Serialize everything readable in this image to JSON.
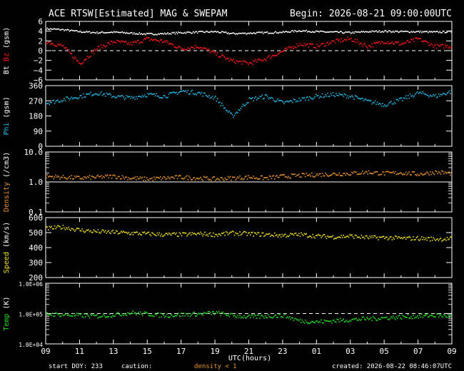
{
  "header": {
    "title": "ACE RTSW[Estimated] MAG & SWEPAM",
    "begin": "Begin: 2026-08-21 09:00:00UTC"
  },
  "footer": {
    "start_doy": "start DOY: 233",
    "caution": "caution:",
    "density_note": "density < 1",
    "created": "created: 2026-08-22 08:46:07UTC",
    "xlabel": "UTC(hours)"
  },
  "colors": {
    "bt": "#ffffff",
    "bz": "#ff1a1a",
    "phi": "#22b8e8",
    "density": "#e8922a",
    "speed": "#f0e020",
    "temp": "#22dd22",
    "caution": "#e8922a"
  },
  "chart_data": {
    "type": "scatter",
    "x_tick_labels": [
      "09",
      "11",
      "13",
      "15",
      "17",
      "19",
      "21",
      "23",
      "01",
      "03",
      "05",
      "07",
      "09"
    ],
    "x_range_hours": [
      0,
      24
    ],
    "panels": [
      {
        "id": "mag",
        "label_parts": [
          {
            "text": "Bt",
            "color": "#ffffff"
          },
          {
            "text": "Bz",
            "color": "#ff1a1a"
          },
          {
            "text": "(gsm)",
            "color": "#ffffff"
          }
        ],
        "ylim": [
          -6,
          6
        ],
        "scale": "linear",
        "ticks": [
          {
            "v": 6,
            "l": "6"
          },
          {
            "v": 4,
            "l": "4"
          },
          {
            "v": 2,
            "l": "2"
          },
          {
            "v": 0,
            "l": "0"
          },
          {
            "v": -2,
            "l": "−2"
          },
          {
            "v": -4,
            "l": "−4"
          },
          {
            "v": -6,
            "l": "−6"
          }
        ],
        "ref_line": 0,
        "series": [
          {
            "name": "Bt",
            "color": "#ffffff",
            "x": [
              0,
              1,
              2,
              3,
              4,
              5,
              6,
              7,
              8,
              9,
              10,
              11,
              12,
              13,
              14,
              15,
              16,
              17,
              18,
              19,
              20,
              21,
              22,
              23,
              24
            ],
            "y": [
              4.6,
              4.4,
              4.0,
              3.8,
              3.9,
              3.7,
              3.5,
              3.6,
              3.8,
              3.9,
              4.0,
              3.6,
              3.7,
              3.8,
              3.9,
              4.2,
              4.0,
              3.9,
              3.8,
              4.0,
              4.1,
              4.0,
              4.0,
              3.9,
              4.0
            ]
          },
          {
            "name": "Bz",
            "color": "#ff1a1a",
            "x": [
              0,
              1,
              2,
              3,
              4,
              5,
              6,
              7,
              8,
              9,
              10,
              11,
              12,
              13,
              14,
              15,
              16,
              17,
              18,
              19,
              20,
              21,
              22,
              23,
              24
            ],
            "y": [
              2.0,
              1.0,
              -2.5,
              0.5,
              2.0,
              1.5,
              2.5,
              2.0,
              0.5,
              1.0,
              -0.5,
              -2.0,
              -2.5,
              -1.5,
              0.0,
              1.5,
              1.0,
              2.0,
              2.5,
              1.0,
              2.0,
              1.5,
              2.5,
              1.0,
              1.0
            ]
          }
        ]
      },
      {
        "id": "phi",
        "label_parts": [
          {
            "text": "Phi",
            "color": "#22b8e8"
          },
          {
            "text": "(gsm)",
            "color": "#ffffff"
          }
        ],
        "ylim": [
          0,
          360
        ],
        "scale": "linear",
        "ticks": [
          {
            "v": 360,
            "l": "360"
          },
          {
            "v": 270,
            "l": "270"
          },
          {
            "v": 180,
            "l": "180"
          },
          {
            "v": 90,
            "l": "90"
          },
          {
            "v": 0,
            "l": "0"
          }
        ],
        "series": [
          {
            "name": "Phi",
            "color": "#22b8e8",
            "x": [
              0,
              1,
              2,
              3,
              4,
              5,
              6,
              7,
              8,
              9,
              10,
              11,
              12,
              13,
              14,
              15,
              16,
              17,
              18,
              19,
              20,
              21,
              22,
              23,
              24
            ],
            "y": [
              260,
              280,
              300,
              320,
              300,
              290,
              310,
              300,
              330,
              320,
              290,
              180,
              280,
              300,
              260,
              280,
              300,
              310,
              300,
              270,
              250,
              280,
              320,
              300,
              330
            ]
          }
        ]
      },
      {
        "id": "density",
        "label_parts": [
          {
            "text": "Density",
            "color": "#e8922a"
          },
          {
            "text": "(/cm3)",
            "color": "#ffffff"
          }
        ],
        "ylim": [
          0.1,
          10
        ],
        "scale": "log",
        "ticks": [
          {
            "v": 10,
            "l": "10.0"
          },
          {
            "v": 1,
            "l": "1.0"
          },
          {
            "v": 0.1,
            "l": "0.1"
          }
        ],
        "ref_line": 1,
        "series": [
          {
            "name": "Density",
            "color": "#e8922a",
            "x": [
              0,
              1,
              2,
              3,
              4,
              5,
              6,
              7,
              8,
              9,
              10,
              11,
              12,
              13,
              14,
              15,
              16,
              17,
              18,
              19,
              20,
              21,
              22,
              23,
              24
            ],
            "y": [
              1.6,
              1.5,
              1.4,
              1.5,
              1.6,
              1.4,
              1.3,
              1.4,
              1.5,
              1.4,
              1.3,
              1.4,
              1.5,
              1.4,
              1.6,
              1.7,
              1.8,
              1.9,
              2.0,
              2.2,
              2.0,
              2.1,
              1.9,
              2.2,
              2.0
            ]
          }
        ]
      },
      {
        "id": "speed",
        "label_parts": [
          {
            "text": "Speed",
            "color": "#f0e020"
          },
          {
            "text": "(km/s)",
            "color": "#ffffff"
          }
        ],
        "ylim": [
          200,
          600
        ],
        "scale": "linear",
        "ticks": [
          {
            "v": 600,
            "l": "600"
          },
          {
            "v": 500,
            "l": "500"
          },
          {
            "v": 400,
            "l": "400"
          },
          {
            "v": 300,
            "l": "300"
          },
          {
            "v": 200,
            "l": "200"
          }
        ],
        "series": [
          {
            "name": "Speed",
            "color": "#f0e020",
            "x": [
              0,
              1,
              2,
              3,
              4,
              5,
              6,
              7,
              8,
              9,
              10,
              11,
              12,
              13,
              14,
              15,
              16,
              17,
              18,
              19,
              20,
              21,
              22,
              23,
              24
            ],
            "y": [
              530,
              540,
              520,
              510,
              505,
              500,
              495,
              490,
              490,
              495,
              490,
              500,
              495,
              490,
              485,
              490,
              480,
              475,
              480,
              470,
              470,
              465,
              465,
              460,
              462
            ]
          }
        ]
      },
      {
        "id": "temp",
        "label_parts": [
          {
            "text": "Temp",
            "color": "#22dd22"
          },
          {
            "text": "(K)",
            "color": "#ffffff"
          }
        ],
        "ylim": [
          10000,
          1000000
        ],
        "scale": "log",
        "ticks": [
          {
            "v": 1000000,
            "l": "1.0E+06"
          },
          {
            "v": 100000,
            "l": "1.0E+05"
          },
          {
            "v": 10000,
            "l": "1.0E+04"
          }
        ],
        "ref_line": 100000,
        "series": [
          {
            "name": "Temp",
            "color": "#22dd22",
            "x": [
              0,
              1,
              2,
              3,
              4,
              5,
              6,
              7,
              8,
              9,
              10,
              11,
              12,
              13,
              14,
              15,
              16,
              17,
              18,
              19,
              20,
              21,
              22,
              23,
              24
            ],
            "y": [
              100000,
              95000,
              90000,
              85000,
              95000,
              110000,
              100000,
              90000,
              95000,
              100000,
              110000,
              90000,
              80000,
              85000,
              90000,
              60000,
              55000,
              60000,
              65000,
              70000,
              75000,
              80000,
              85000,
              90000,
              85000
            ]
          }
        ]
      }
    ]
  }
}
